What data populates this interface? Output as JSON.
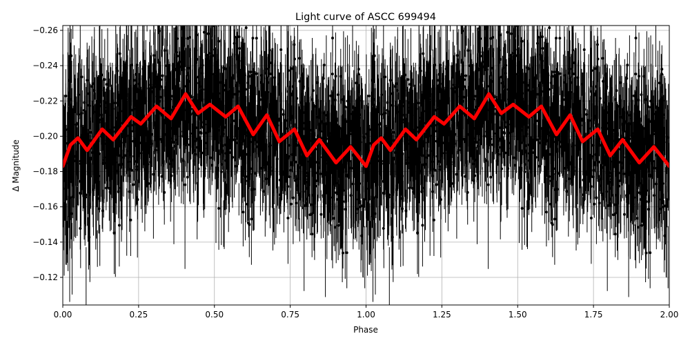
{
  "chart_data": {
    "type": "scatter",
    "title": "Light curve of ASCC 699494",
    "xlabel": "Phase",
    "ylabel": "Δ Magnitude",
    "xlim": [
      0.0,
      2.0
    ],
    "ylim": [
      -0.104,
      -0.263
    ],
    "y_inverted": true,
    "grid": true,
    "legend": null,
    "x_ticks": [
      "0.00",
      "0.25",
      "0.50",
      "0.75",
      "1.00",
      "1.25",
      "1.50",
      "1.75",
      "2.00"
    ],
    "y_ticks": [
      "−0.26",
      "−0.24",
      "−0.22",
      "−0.20",
      "−0.18",
      "−0.16",
      "−0.14",
      "−0.12"
    ],
    "y_tick_values": [
      -0.26,
      -0.24,
      -0.22,
      -0.2,
      -0.18,
      -0.16,
      -0.14,
      -0.12
    ],
    "x_tick_values": [
      0.0,
      0.25,
      0.5,
      0.75,
      1.0,
      1.25,
      1.5,
      1.75,
      2.0
    ],
    "series": [
      {
        "name": "observations",
        "style": "black points with error bars",
        "color": "#000000",
        "description": "Dense phase-folded photometry, scatter roughly -0.26 to -0.10 mag, repeated for phase 1-2"
      },
      {
        "name": "model fit",
        "style": "thick line",
        "color": "#ff0000",
        "phase": [
          0.0,
          0.025,
          0.05,
          0.08,
          0.13,
          0.166,
          0.225,
          0.257,
          0.278,
          0.309,
          0.357,
          0.405,
          0.446,
          0.485,
          0.537,
          0.578,
          0.628,
          0.673,
          0.714,
          0.764,
          0.805,
          0.846,
          0.901,
          0.949,
          1.0
        ],
        "values": [
          -0.183,
          -0.195,
          -0.199,
          -0.192,
          -0.204,
          -0.198,
          -0.211,
          -0.207,
          -0.211,
          -0.217,
          -0.21,
          -0.224,
          -0.213,
          -0.218,
          -0.211,
          -0.217,
          -0.201,
          -0.212,
          -0.197,
          -0.204,
          -0.189,
          -0.198,
          -0.185,
          -0.194,
          -0.183
        ],
        "repeats_period": 1.0
      }
    ]
  }
}
